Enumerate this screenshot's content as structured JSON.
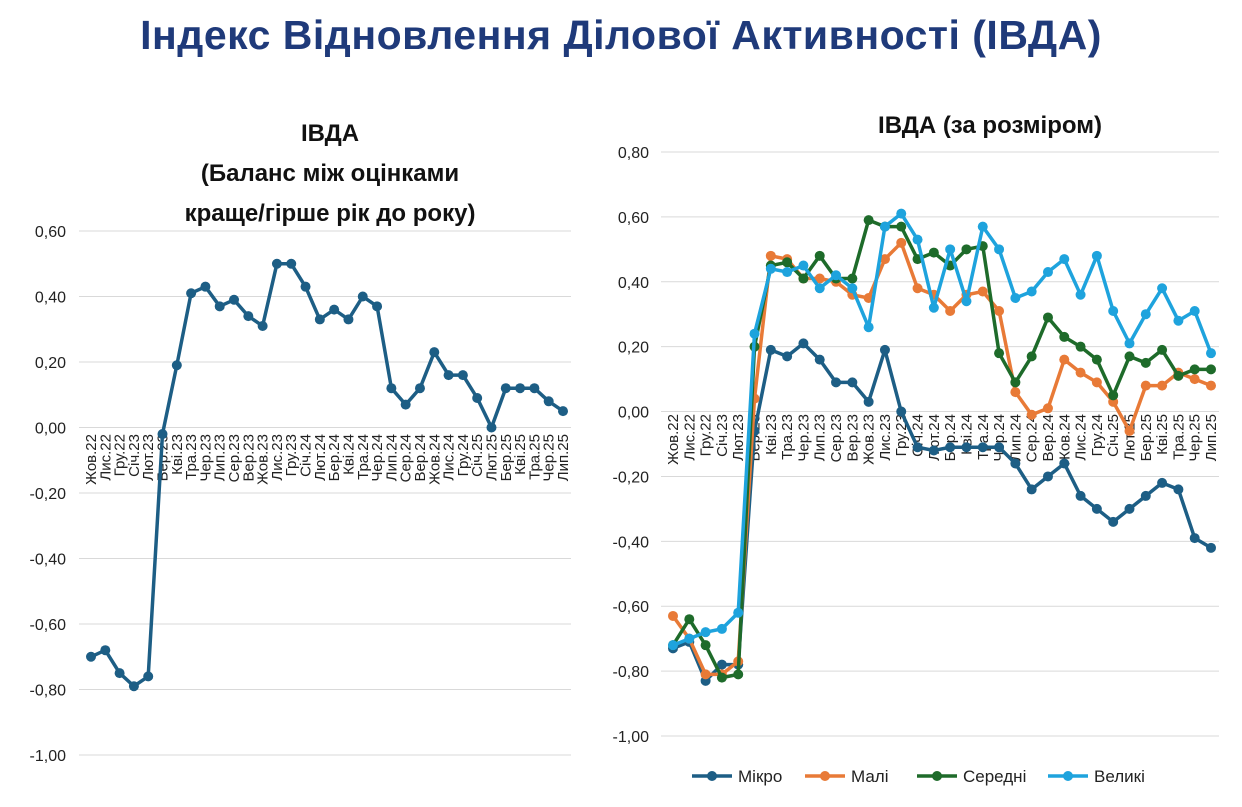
{
  "page_title": "Індекс Відновлення Ділової Активності (ІВДА)",
  "colors": {
    "title": "#1f3a7a",
    "left_line": "#1d5e85",
    "grid": "#d9d9d9"
  },
  "chart_data": [
    {
      "type": "line",
      "title_lines": [
        "ІВДА",
        "(Баланс між оцінками",
        "краще/гірше рік до року)"
      ],
      "categories": [
        "Жов.22",
        "Лис.22",
        "Гру.22",
        "Січ.23",
        "Лют.23",
        "Бер.23",
        "Кві.23",
        "Тра.23",
        "Чер.23",
        "Лип.23",
        "Сер.23",
        "Вер.23",
        "Жов.23",
        "Лис.23",
        "Гру.23",
        "Січ.24",
        "Лют.24",
        "Бер.24",
        "Кві.24",
        "Тра.24",
        "Чер.24",
        "Лип.24",
        "Сер.24",
        "Вер.24",
        "Жов.24",
        "Лис.24",
        "Гру.24",
        "Січ.25",
        "Лют.25",
        "Бер.25",
        "Кві.25",
        "Тра.25",
        "Чер.25",
        "Лип.25"
      ],
      "series": [
        {
          "name": "ІВДА",
          "color": "#1d5e85",
          "values": [
            -0.7,
            -0.68,
            -0.75,
            -0.79,
            -0.76,
            -0.02,
            0.19,
            0.41,
            0.43,
            0.37,
            0.39,
            0.34,
            0.31,
            0.5,
            0.5,
            0.43,
            0.33,
            0.36,
            0.33,
            0.4,
            0.37,
            0.12,
            0.07,
            0.12,
            0.23,
            0.16,
            0.16,
            0.09,
            0.0,
            0.12,
            0.12,
            0.12,
            0.08,
            0.05
          ]
        }
      ],
      "yticks": [
        "0,60",
        "0,40",
        "0,20",
        "0,00",
        "-0,20",
        "-0,40",
        "-0,60",
        "-0,80",
        "-1,00"
      ],
      "ylim": [
        -1.0,
        0.6
      ],
      "legend": false
    },
    {
      "type": "line",
      "title": "ІВДА (за розміром)",
      "categories": [
        "Жов.22",
        "Лис.22",
        "Гру.22",
        "Січ.23",
        "Лют.23",
        "Бер.23",
        "Кві.23",
        "Тра.23",
        "Чер.23",
        "Лип.23",
        "Сер.23",
        "Вер.23",
        "Жов.23",
        "Лис.23",
        "Гру.23",
        "Січ.24",
        "Лют.24",
        "Бер.24",
        "Кві.24",
        "Тра.24",
        "Чер.24",
        "Лип.24",
        "Сер.24",
        "Вер.24",
        "Жов.24",
        "Лис.24",
        "Гру.24",
        "Січ.25",
        "Лют.25",
        "Бер.25",
        "Кві.25",
        "Тра.25",
        "Чер.25",
        "Лип.25"
      ],
      "series": [
        {
          "name": "Мікро",
          "color": "#1d5e85",
          "values": [
            -0.73,
            -0.71,
            -0.83,
            -0.78,
            -0.78,
            -0.06,
            0.19,
            0.17,
            0.21,
            0.16,
            0.09,
            0.09,
            0.03,
            0.19,
            0.0,
            -0.11,
            -0.12,
            -0.11,
            -0.11,
            -0.11,
            -0.11,
            -0.16,
            -0.24,
            -0.2,
            -0.16,
            -0.26,
            -0.3,
            -0.34,
            -0.3,
            -0.26,
            -0.22,
            -0.24,
            -0.39,
            -0.42
          ]
        },
        {
          "name": "Малі",
          "color": "#e87a37",
          "values": [
            -0.63,
            -0.7,
            -0.81,
            -0.81,
            -0.77,
            0.04,
            0.48,
            0.47,
            0.41,
            0.41,
            0.4,
            0.36,
            0.35,
            0.47,
            0.52,
            0.38,
            0.36,
            0.31,
            0.36,
            0.37,
            0.31,
            0.06,
            -0.01,
            0.01,
            0.16,
            0.12,
            0.09,
            0.03,
            -0.06,
            0.08,
            0.08,
            0.12,
            0.1,
            0.08
          ]
        },
        {
          "name": "Середні",
          "color": "#1e6b2a",
          "values": [
            -0.72,
            -0.64,
            -0.72,
            -0.82,
            -0.81,
            0.2,
            0.45,
            0.46,
            0.41,
            0.48,
            0.41,
            0.41,
            0.59,
            0.57,
            0.57,
            0.47,
            0.49,
            0.45,
            0.5,
            0.51,
            0.18,
            0.09,
            0.17,
            0.29,
            0.23,
            0.2,
            0.16,
            0.05,
            0.17,
            0.15,
            0.19,
            0.11,
            0.13,
            0.13
          ]
        },
        {
          "name": "Великі",
          "color": "#1ea3dd",
          "values": [
            -0.72,
            -0.7,
            -0.68,
            -0.67,
            -0.62,
            0.24,
            0.44,
            0.43,
            0.45,
            0.38,
            0.42,
            0.38,
            0.26,
            0.57,
            0.61,
            0.53,
            0.32,
            0.5,
            0.34,
            0.57,
            0.5,
            0.35,
            0.37,
            0.43,
            0.47,
            0.36,
            0.48,
            0.31,
            0.21,
            0.3,
            0.38,
            0.28,
            0.31,
            0.18
          ]
        }
      ],
      "yticks": [
        "0,80",
        "0,60",
        "0,40",
        "0,20",
        "0,00",
        "-0,20",
        "-0,40",
        "-0,60",
        "-0,80",
        "-1,00"
      ],
      "ylim": [
        -1.0,
        0.8
      ],
      "legend": true,
      "legend_position": "bottom"
    }
  ]
}
